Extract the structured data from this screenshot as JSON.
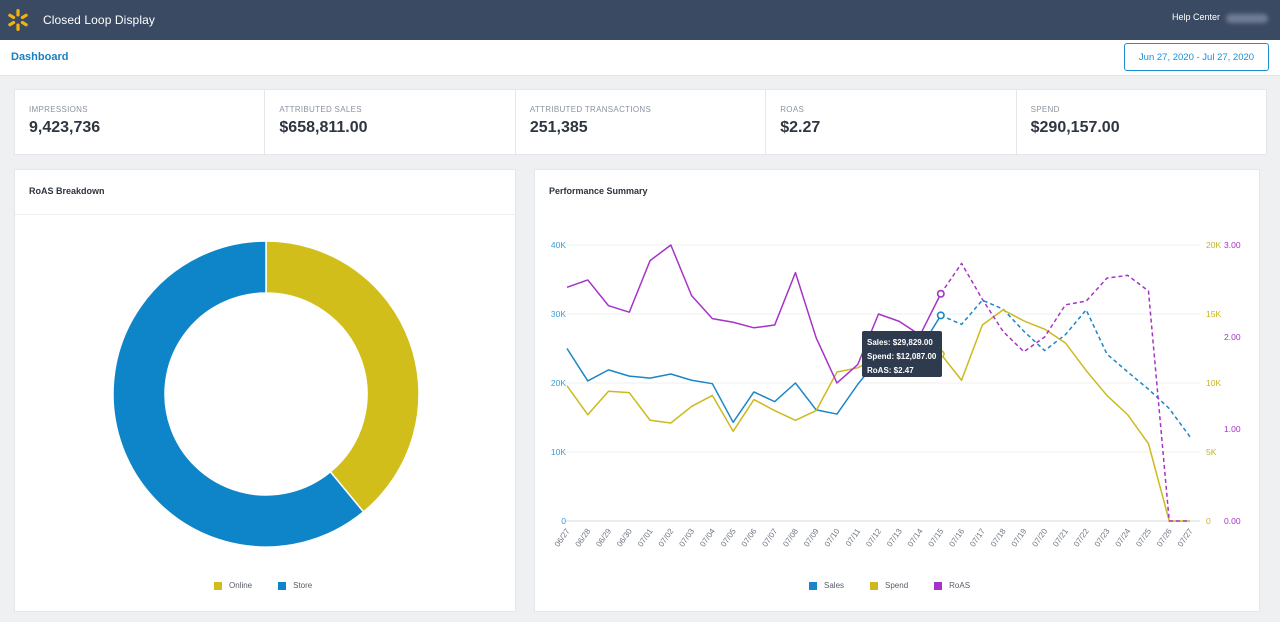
{
  "app": {
    "title": "Closed Loop Display",
    "help_label": "Help Center"
  },
  "nav": {
    "dashboard_label": "Dashboard",
    "date_range": "Jun 27, 2020 - Jul 27, 2020"
  },
  "metrics": [
    {
      "label": "IMPRESSIONS",
      "value": "9,423,736"
    },
    {
      "label": "ATTRIBUTED SALES",
      "value": "$658,811.00"
    },
    {
      "label": "ATTRIBUTED TRANSACTIONS",
      "value": "251,385"
    },
    {
      "label": "ROAS",
      "value": "$2.27"
    },
    {
      "label": "SPEND",
      "value": "$290,157.00"
    }
  ],
  "roas_card": {
    "title": "RoAS Breakdown",
    "legend": [
      {
        "label": "Online",
        "color": "#d2be1b"
      },
      {
        "label": "Store",
        "color": "#0f85c9"
      }
    ]
  },
  "perf_card": {
    "title": "Performance Summary",
    "legend": [
      {
        "label": "Sales",
        "color": "#1b86c7"
      },
      {
        "label": "Spend",
        "color": "#cdb91f"
      },
      {
        "label": "RoAS",
        "color": "#a633c7"
      }
    ],
    "tooltip": {
      "sales": "Sales: $29,829.00",
      "spend": "Spend: $12,087.00",
      "roas": "RoAS: $2.47"
    }
  },
  "chart_data": [
    {
      "type": "pie",
      "categories": [
        "Online",
        "Store"
      ],
      "values": [
        39,
        61
      ],
      "colors": [
        "#d2be1b",
        "#0f85c9"
      ],
      "donut": true
    },
    {
      "type": "line",
      "categories": [
        "06/27",
        "06/28",
        "06/29",
        "06/30",
        "07/01",
        "07/02",
        "07/03",
        "07/04",
        "07/05",
        "07/06",
        "07/07",
        "07/08",
        "07/09",
        "07/10",
        "07/11",
        "07/12",
        "07/13",
        "07/14",
        "07/15",
        "07/16",
        "07/17",
        "07/18",
        "07/19",
        "07/20",
        "07/21",
        "07/22",
        "07/23",
        "07/24",
        "07/25",
        "07/26",
        "07/27"
      ],
      "left_axis": {
        "ticks": [
          "0",
          "10K",
          "20K",
          "30K",
          "40K"
        ],
        "ylim": [
          0,
          40000
        ],
        "color": "#3b9bd6"
      },
      "right_axis_spend": {
        "ticks": [
          "0",
          "5K",
          "10K",
          "15K",
          "20K"
        ],
        "ylim": [
          0,
          20000
        ],
        "color": "#c9b51f"
      },
      "right_axis_roas": {
        "ticks": [
          "0.00",
          "1.00",
          "2.00",
          "3.00"
        ],
        "ylim": [
          0,
          3
        ],
        "color": "#a633c7"
      },
      "grid": true,
      "legend_position": "bottom",
      "series": [
        {
          "name": "Sales",
          "axis": "left",
          "color": "#1b86c7",
          "dashed_from_index": 18,
          "values": [
            25000,
            20300,
            21900,
            21000,
            20700,
            21300,
            20400,
            19900,
            14300,
            18700,
            17300,
            20000,
            16100,
            15500,
            19800,
            23500,
            26900,
            24900,
            29800,
            28500,
            32000,
            30700,
            27500,
            24700,
            27000,
            30600,
            24200,
            21600,
            19100,
            16300,
            12200
          ]
        },
        {
          "name": "Spend",
          "axis": "right_spend",
          "color": "#cdb91f",
          "dashed_from_index": null,
          "values": [
            9800,
            7700,
            9400,
            9300,
            7300,
            7100,
            8300,
            9100,
            6500,
            8800,
            8000,
            7300,
            8000,
            10800,
            11100,
            11900,
            12300,
            11900,
            12100,
            10200,
            14200,
            15300,
            14500,
            13900,
            12900,
            10900,
            9100,
            7700,
            5600,
            0,
            0
          ]
        },
        {
          "name": "RoAS",
          "axis": "right_roas",
          "color": "#a633c7",
          "dashed_from_index": 18,
          "values": [
            2.54,
            2.62,
            2.34,
            2.27,
            2.83,
            3.0,
            2.45,
            2.2,
            2.16,
            2.1,
            2.13,
            2.7,
            1.99,
            1.5,
            1.7,
            2.25,
            2.17,
            2.02,
            2.47,
            2.8,
            2.41,
            2.06,
            1.84,
            2.0,
            2.35,
            2.39,
            2.64,
            2.67,
            2.5,
            0,
            0
          ]
        }
      ]
    }
  ]
}
